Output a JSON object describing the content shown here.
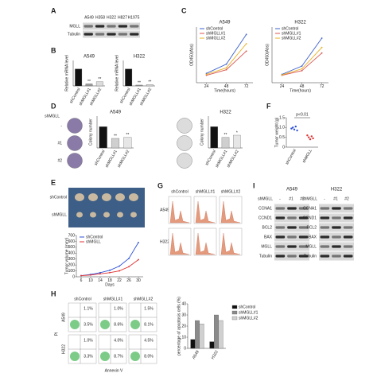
{
  "figure": {
    "a": {
      "letter": "A",
      "lanes": [
        "A549",
        "H358",
        "H322",
        "H827",
        "H1975"
      ],
      "bands": [
        "MGLL",
        "Tubulin"
      ]
    },
    "b": {
      "letter": "B",
      "charts": [
        {
          "type": "bar",
          "title": "A549",
          "ylabel": "Relative mRNA level",
          "categories": [
            "shControl",
            "shMGLL#1",
            "shMGLL#2"
          ],
          "values": [
            1,
            0.12,
            0.25
          ],
          "colors": [
            "#111111",
            "#9a9a9a",
            "#dcdcdc"
          ],
          "ylim": [
            0,
            1.5
          ],
          "significance": [
            null,
            "**",
            "**"
          ]
        },
        {
          "type": "bar",
          "title": "H322",
          "ylabel": "Relative mRNA level",
          "categories": [
            "shControl",
            "shMGLL#1",
            "shMGLL#2"
          ],
          "values": [
            1,
            0.05,
            0.08
          ],
          "colors": [
            "#111111",
            "#9a9a9a",
            "#dcdcdc"
          ],
          "ylim": [
            0,
            1.5
          ],
          "significance": [
            null,
            "**",
            "**"
          ]
        }
      ]
    },
    "c": {
      "letter": "C",
      "charts": [
        {
          "type": "line",
          "title": "A549",
          "xlabel": "Time(hours)",
          "ylabel": "OD450(Abs)",
          "x": [
            24,
            48,
            72
          ],
          "xlim": [
            12,
            80
          ],
          "xticks": [
            24,
            48,
            72
          ],
          "ylim": [
            0,
            3
          ],
          "series": [
            {
              "name": "shControl",
              "color": "#3a5fcd",
              "values": [
                0.5,
                1.0,
                2.6
              ]
            },
            {
              "name": "shMGLL#1",
              "color": "#d9534f",
              "values": [
                0.4,
                0.7,
                1.7
              ]
            },
            {
              "name": "shMGLL#2",
              "color": "#e8b020",
              "values": [
                0.45,
                0.8,
                2.1
              ]
            }
          ]
        },
        {
          "type": "line",
          "title": "H322",
          "xlabel": "Time(hours)",
          "ylabel": "OD450(Abs)",
          "x": [
            24,
            48,
            72
          ],
          "xlim": [
            12,
            80
          ],
          "xticks": [
            24,
            48,
            72
          ],
          "ylim": [
            0,
            3
          ],
          "series": [
            {
              "name": "shControl",
              "color": "#3a5fcd",
              "values": [
                0.45,
                0.9,
                2.4
              ]
            },
            {
              "name": "shMGLL#1",
              "color": "#d9534f",
              "values": [
                0.4,
                0.65,
                1.6
              ]
            },
            {
              "name": "shMGLL#2",
              "color": "#e8b020",
              "values": [
                0.42,
                0.75,
                1.9
              ]
            }
          ]
        }
      ]
    },
    "d": {
      "letter": "D",
      "row_label": "shMGLL",
      "rows": [
        "-",
        "#1",
        "#2"
      ],
      "charts": [
        {
          "type": "bar",
          "title": "A549",
          "ylabel": "Colony number",
          "categories": [
            "shControl",
            "shMGLL#1",
            "shMGLL#2"
          ],
          "values": [
            1,
            0.45,
            0.5
          ],
          "colors": [
            "#111111",
            "#cfcfcf",
            "#e6e6e6"
          ],
          "ylim": [
            0,
            1.5
          ],
          "significance": [
            null,
            "**",
            "**"
          ]
        },
        {
          "type": "bar",
          "title": "H322",
          "ylabel": "Colony number",
          "categories": [
            "shControl",
            "shMGLL#1",
            "shMGLL#2"
          ],
          "values": [
            1,
            0.5,
            0.6
          ],
          "colors": [
            "#111111",
            "#cfcfcf",
            "#e6e6e6"
          ],
          "ylim": [
            0,
            1.5
          ],
          "significance": [
            null,
            "**",
            "*"
          ]
        }
      ]
    },
    "e": {
      "letter": "E",
      "photo_rows": [
        "shControl",
        "shMGLL"
      ],
      "chart": {
        "type": "line",
        "xlabel": "Days",
        "ylabel": "Tumor volume (mm³)",
        "x": [
          6,
          10,
          14,
          18,
          22,
          26,
          30
        ],
        "xlim": [
          4,
          32
        ],
        "xticks": [
          6,
          10,
          14,
          18,
          22,
          26,
          30
        ],
        "ylim": [
          0,
          700
        ],
        "yticks": [
          0,
          100,
          200,
          300,
          400,
          500,
          600,
          700
        ],
        "series": [
          {
            "name": "shControl",
            "color": "#2b4fd6",
            "values": [
              20,
              40,
              70,
              110,
              180,
              310,
              580
            ]
          },
          {
            "name": "shMGLL",
            "color": "#e03030",
            "values": [
              20,
              30,
              50,
              70,
              100,
              170,
              290
            ]
          }
        ]
      }
    },
    "f": {
      "letter": "F",
      "chart": {
        "type": "strip",
        "ylabel": "Tumor weight (g)",
        "annotation": "p<0.01",
        "categories": [
          "shControl",
          "shMGLL"
        ],
        "colors": [
          "#2b4fd6",
          "#e03030"
        ],
        "ylim": [
          0,
          1.5
        ],
        "yticks": [
          0,
          0.5,
          {
            "value": 1,
            "label": "1.0"
          },
          1.5
        ],
        "values": [
          [
            0.95,
            1.0,
            0.9,
            1.05,
            0.85
          ],
          [
            0.6,
            0.5,
            0.4,
            0.55,
            0.45
          ]
        ]
      }
    },
    "g": {
      "letter": "G",
      "columns": [
        "shControl",
        "shMGLL#1",
        "shMGLL#2"
      ],
      "rows": [
        "A549",
        "H322"
      ]
    },
    "h": {
      "letter": "H",
      "columns": [
        "shControl",
        "shMGLL#1",
        "shMGLL#2"
      ],
      "rows": [
        "A549",
        "H322"
      ],
      "xlabel": "Annexin V",
      "ylabel": "PI",
      "quadrants": [
        [
          [
            "1.1%",
            "3.5%"
          ],
          [
            "1.0%",
            "8.6%"
          ],
          [
            "1.5%",
            "8.1%"
          ]
        ],
        [
          [
            "1.0%",
            "3.3%"
          ],
          [
            "4.0%",
            "8.7%"
          ],
          [
            "4.5%",
            "8.0%"
          ]
        ]
      ],
      "chart": {
        "type": "groupbar",
        "ylabel": "percentage of apoptosis cells (%)",
        "categories": [
          "A549",
          "H322"
        ],
        "ylim": [
          0,
          40
        ],
        "yticks": [
          0,
          10,
          20,
          30,
          40
        ],
        "series": [
          {
            "name": "shControl",
            "color": "#111111",
            "values": [
              8,
              6
            ]
          },
          {
            "name": "shMGLL#1",
            "color": "#8a8a8a",
            "values": [
              25,
              30
            ]
          },
          {
            "name": "shMGLL#2",
            "color": "#d0d0d0",
            "values": [
              22,
              25
            ]
          }
        ]
      }
    },
    "i": {
      "letter": "I",
      "lines": [
        "A549",
        "H322"
      ],
      "header": "shMGLL",
      "lanes": [
        "-",
        "#1",
        "#2"
      ],
      "bands": [
        "CCNA1",
        "CCND1",
        "BCL2",
        "BAX",
        "MGLL",
        "Tubulin"
      ]
    }
  }
}
